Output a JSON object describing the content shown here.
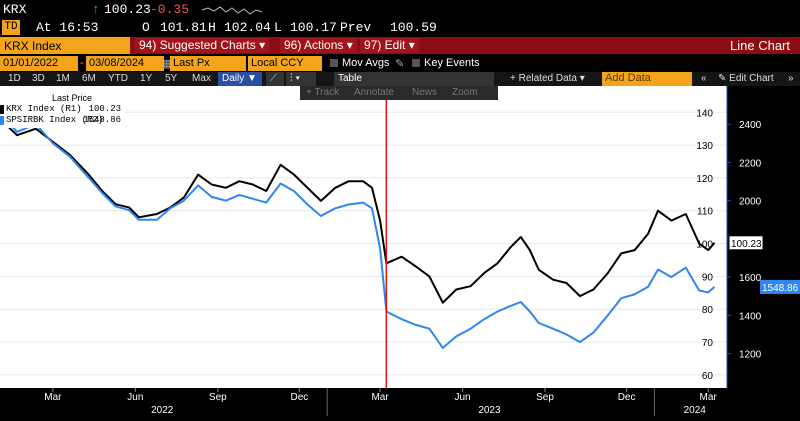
{
  "quote": {
    "ticker": "KRX",
    "last": "100.23",
    "change": "-0.35",
    "time_label": "At 16:53",
    "open_label": "O",
    "open": "101.81",
    "high_label": "H",
    "high": "102.04",
    "low_label": "L",
    "low": "100.17",
    "prev_label": "Prev",
    "prev": "100.59"
  },
  "menu": {
    "security": "KRX Index",
    "items": [
      "94) Suggested Charts ▾",
      "96) Actions ▾",
      "97) Edit ▾"
    ],
    "title": "Line Chart"
  },
  "controls": {
    "start_date": "01/01/2022",
    "end_date": "03/08/2024",
    "field": "Last Px",
    "currency": "Local CCY",
    "mov_avgs": "Mov Avgs",
    "key_events": "Key Events"
  },
  "toolbar": {
    "ranges": [
      "1D",
      "3D",
      "1M",
      "6M",
      "YTD",
      "1Y",
      "5Y",
      "Max"
    ],
    "frequency": "Daily ▼",
    "table": "Table",
    "related": "+ Related Data ▾",
    "add_data_placeholder": "Add Data",
    "edit_chart": "Edit Chart"
  },
  "subtools": [
    "+ Track",
    "Annotate",
    "News",
    "Zoom"
  ],
  "legend": {
    "title": "Last Price",
    "series1": "KRX Index  (R1)",
    "value1": "100.23",
    "series2": "SPSIRBK Index  (R2)",
    "value2": "1548.86"
  },
  "colors": {
    "series1": "#000000",
    "series2": "#2f86f0",
    "bg": "#ffffff",
    "marker": "#e01010",
    "accent": "#f3a41b",
    "menu": "#8b0d13"
  },
  "chart_data": {
    "type": "line",
    "x_ticks": [
      "Mar",
      "Jun",
      "Sep",
      "Dec",
      "Mar",
      "Jun",
      "Sep",
      "Dec",
      "Mar"
    ],
    "year_labels": [
      "2022",
      "2023",
      "2024"
    ],
    "y_left_ticks": [
      60,
      70,
      80,
      90,
      100,
      110,
      120,
      130,
      140
    ],
    "y_right_ticks": [
      1200,
      1400,
      1600,
      1800,
      2000,
      2200,
      2400
    ],
    "y_left_range": [
      56,
      148
    ],
    "y_right_range": [
      1020,
      2600
    ],
    "last_labels": {
      "left": "100.23",
      "right": "1548.86"
    },
    "marker_date": "2023-03-08",
    "series": [
      {
        "name": "KRX Index (R1)",
        "axis": "left",
        "points": [
          [
            "2022-01-01",
            138
          ],
          [
            "2022-01-20",
            133
          ],
          [
            "2022-02-10",
            135
          ],
          [
            "2022-03-01",
            131
          ],
          [
            "2022-03-20",
            127
          ],
          [
            "2022-04-10",
            121
          ],
          [
            "2022-04-25",
            116
          ],
          [
            "2022-05-10",
            112
          ],
          [
            "2022-05-25",
            111
          ],
          [
            "2022-06-05",
            108
          ],
          [
            "2022-06-25",
            109
          ],
          [
            "2022-07-10",
            111
          ],
          [
            "2022-07-25",
            114
          ],
          [
            "2022-08-10",
            121
          ],
          [
            "2022-08-25",
            118
          ],
          [
            "2022-09-10",
            117
          ],
          [
            "2022-09-25",
            119
          ],
          [
            "2022-10-10",
            118
          ],
          [
            "2022-10-25",
            116
          ],
          [
            "2022-11-10",
            124
          ],
          [
            "2022-11-25",
            121
          ],
          [
            "2022-12-10",
            117
          ],
          [
            "2022-12-25",
            113
          ],
          [
            "2023-01-10",
            117
          ],
          [
            "2023-01-25",
            119
          ],
          [
            "2023-02-10",
            119
          ],
          [
            "2023-02-20",
            117
          ],
          [
            "2023-03-01",
            107
          ],
          [
            "2023-03-08",
            94
          ],
          [
            "2023-03-25",
            96
          ],
          [
            "2023-04-10",
            93
          ],
          [
            "2023-04-25",
            90
          ],
          [
            "2023-05-10",
            82
          ],
          [
            "2023-05-25",
            86
          ],
          [
            "2023-06-10",
            87
          ],
          [
            "2023-06-25",
            91
          ],
          [
            "2023-07-10",
            94
          ],
          [
            "2023-07-25",
            99
          ],
          [
            "2023-08-05",
            102
          ],
          [
            "2023-08-15",
            98
          ],
          [
            "2023-08-25",
            92
          ],
          [
            "2023-09-10",
            89
          ],
          [
            "2023-09-25",
            88
          ],
          [
            "2023-10-10",
            84
          ],
          [
            "2023-10-25",
            86
          ],
          [
            "2023-11-10",
            91
          ],
          [
            "2023-11-25",
            97
          ],
          [
            "2023-12-10",
            98
          ],
          [
            "2023-12-25",
            103
          ],
          [
            "2024-01-05",
            110
          ],
          [
            "2024-01-20",
            107
          ],
          [
            "2024-02-05",
            109
          ],
          [
            "2024-02-20",
            100
          ],
          [
            "2024-03-01",
            98
          ],
          [
            "2024-03-08",
            100.23
          ]
        ]
      },
      {
        "name": "SPSIRBK Index (R2)",
        "axis": "right",
        "points": [
          [
            "2022-01-01",
            2460
          ],
          [
            "2022-01-20",
            2360
          ],
          [
            "2022-02-10",
            2400
          ],
          [
            "2022-03-01",
            2300
          ],
          [
            "2022-03-20",
            2230
          ],
          [
            "2022-04-10",
            2120
          ],
          [
            "2022-04-25",
            2040
          ],
          [
            "2022-05-10",
            1970
          ],
          [
            "2022-05-25",
            1950
          ],
          [
            "2022-06-05",
            1900
          ],
          [
            "2022-06-25",
            1900
          ],
          [
            "2022-07-10",
            1960
          ],
          [
            "2022-07-25",
            2000
          ],
          [
            "2022-08-10",
            2080
          ],
          [
            "2022-08-25",
            2020
          ],
          [
            "2022-09-10",
            2000
          ],
          [
            "2022-09-25",
            2030
          ],
          [
            "2022-10-10",
            2010
          ],
          [
            "2022-10-25",
            1990
          ],
          [
            "2022-11-10",
            2090
          ],
          [
            "2022-11-25",
            2050
          ],
          [
            "2022-12-10",
            1980
          ],
          [
            "2022-12-25",
            1920
          ],
          [
            "2023-01-10",
            1960
          ],
          [
            "2023-01-25",
            1980
          ],
          [
            "2023-02-10",
            1990
          ],
          [
            "2023-02-20",
            1960
          ],
          [
            "2023-03-01",
            1750
          ],
          [
            "2023-03-08",
            1420
          ],
          [
            "2023-03-25",
            1380
          ],
          [
            "2023-04-10",
            1350
          ],
          [
            "2023-04-25",
            1330
          ],
          [
            "2023-05-10",
            1230
          ],
          [
            "2023-05-25",
            1290
          ],
          [
            "2023-06-10",
            1330
          ],
          [
            "2023-06-25",
            1380
          ],
          [
            "2023-07-10",
            1420
          ],
          [
            "2023-07-25",
            1450
          ],
          [
            "2023-08-05",
            1470
          ],
          [
            "2023-08-15",
            1420
          ],
          [
            "2023-08-25",
            1360
          ],
          [
            "2023-09-10",
            1330
          ],
          [
            "2023-09-25",
            1300
          ],
          [
            "2023-10-10",
            1260
          ],
          [
            "2023-10-25",
            1310
          ],
          [
            "2023-11-10",
            1400
          ],
          [
            "2023-11-25",
            1490
          ],
          [
            "2023-12-10",
            1510
          ],
          [
            "2023-12-25",
            1550
          ],
          [
            "2024-01-05",
            1640
          ],
          [
            "2024-01-20",
            1600
          ],
          [
            "2024-02-05",
            1650
          ],
          [
            "2024-02-20",
            1530
          ],
          [
            "2024-03-01",
            1520
          ],
          [
            "2024-03-08",
            1548.86
          ]
        ]
      }
    ]
  }
}
